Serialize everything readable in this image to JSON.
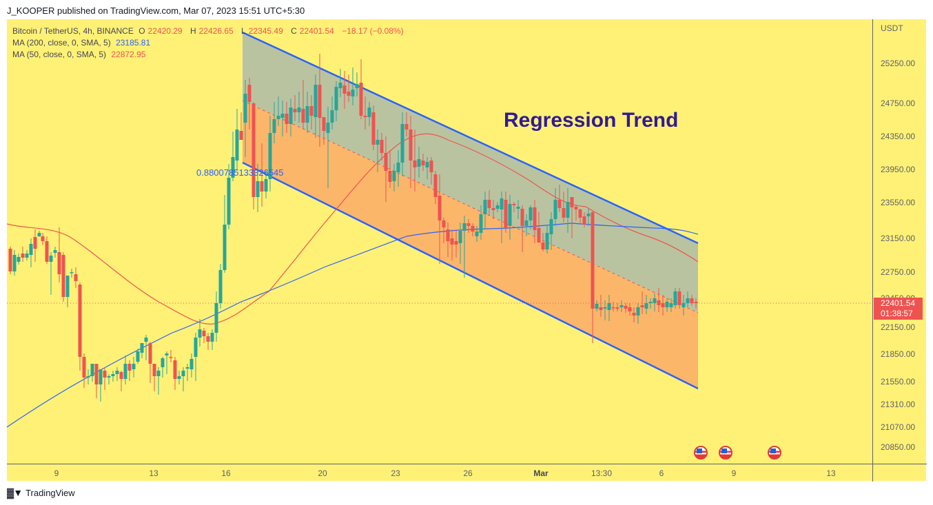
{
  "publisher_line": "J_KOOPER published on TradingView.com, Mar 07, 2023 15:51 UTC+5:30",
  "legend": {
    "symbol": "Bitcoin / TetherUS, 4h, BINANCE",
    "o_label": "O",
    "o": "22420.29",
    "h_label": "H",
    "h": "22426.65",
    "l_label": "L",
    "l": "22345.49",
    "c_label": "C",
    "c": "22401.54",
    "change": "−18.17 (−0.08%)",
    "ma200_label": "MA (200, close, 0, SMA, 5)",
    "ma200_value": "23185.81",
    "ma50_label": "MA (50, close, 0, SMA, 5)",
    "ma50_value": "22872.95"
  },
  "annotation_title": "Regression Trend",
  "regression_label": "0.8800785133326545",
  "price_axis": {
    "unit": "USDT",
    "ticks": [
      "25250.00",
      "24750.00",
      "24350.00",
      "23950.00",
      "23550.00",
      "23150.00",
      "22750.00",
      "22450.00",
      "22150.00",
      "21850.00",
      "21550.00",
      "21310.00",
      "21070.00",
      "20850.00"
    ],
    "current_price": "22401.54",
    "countdown": "01:38:57"
  },
  "time_axis": {
    "ticks": [
      "9",
      "13",
      "16",
      "20",
      "23",
      "26",
      "Mar",
      "13:30",
      "6",
      "9",
      "13"
    ]
  },
  "colors": {
    "background": "#fff176",
    "up": "#26a69a",
    "down": "#ef5350",
    "ma200": "#2962ff",
    "ma50": "#ef5350",
    "channel_line": "#2962ff",
    "channel_upper_fill": "#b9c3a0",
    "channel_lower_fill": "#fbb66a"
  },
  "footer": {
    "brand": "TradingView"
  },
  "chart_data": {
    "type": "candlestick",
    "title": "Bitcoin / TetherUS, 4h, BINANCE",
    "annotation": "Regression Trend",
    "ylabel": "USDT",
    "ylim": [
      20700,
      25500
    ],
    "x_ticks": [
      "9",
      "13",
      "16",
      "20",
      "23",
      "26",
      "Mar",
      "13:30",
      "6",
      "9",
      "13"
    ],
    "last": {
      "open": 22420.29,
      "high": 22426.65,
      "low": 22345.49,
      "close": 22401.54,
      "change": -18.17,
      "change_pct": -0.08
    },
    "series": [
      {
        "name": "MA (200, close, 0, SMA, 5)",
        "last": 23185.81
      },
      {
        "name": "MA (50, close, 0, SMA, 5)",
        "last": 22872.95
      }
    ],
    "regression_channel": {
      "pearson_r": 0.8800785133326545,
      "start_x_label": "16",
      "upper_start": 25450,
      "upper_end": 23130,
      "mid_start": 24800,
      "mid_end": 22330,
      "lower_start": 24050,
      "lower_end": 21530
    },
    "events": [
      "US economic event",
      "US economic event",
      "US economic event"
    ]
  }
}
